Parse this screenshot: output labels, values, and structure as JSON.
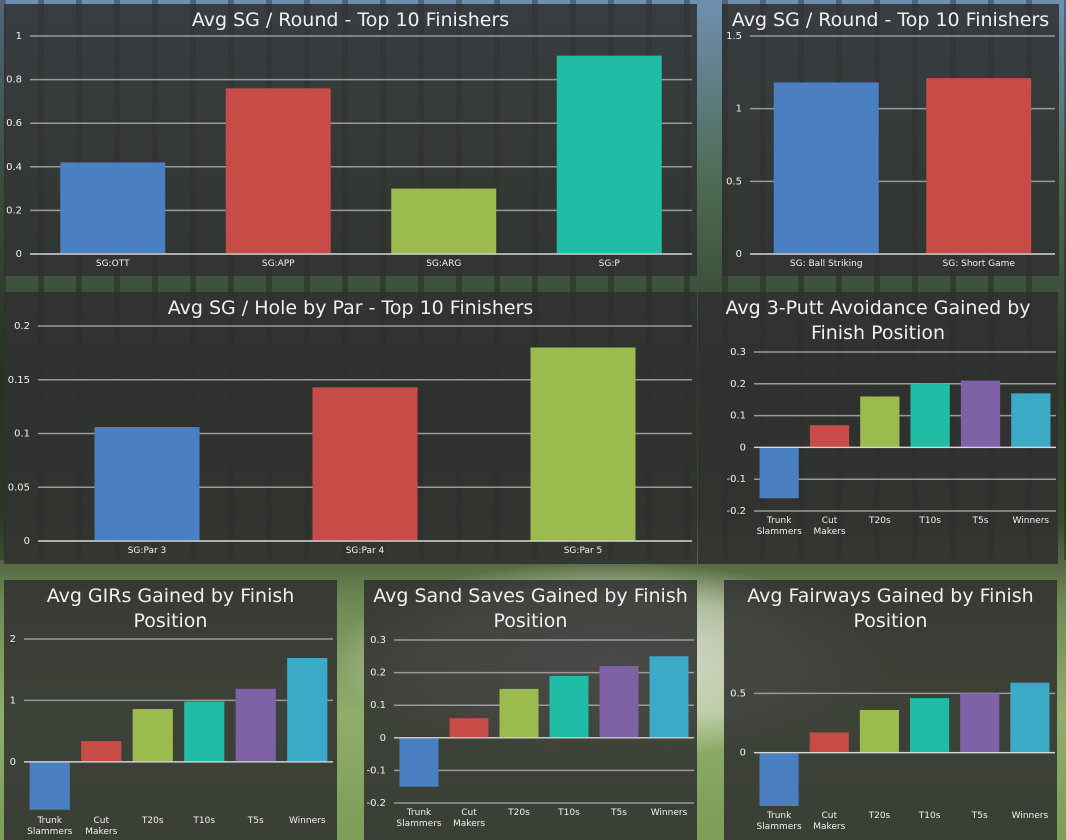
{
  "chart_data": [
    {
      "id": "c1",
      "type": "bar",
      "title": "Avg SG / Round - Top 10 Finishers",
      "categories": [
        "SG:OTT",
        "SG:APP",
        "SG:ARG",
        "SG:P"
      ],
      "values": [
        0.42,
        0.76,
        0.3,
        0.91
      ],
      "colors": [
        "#4a7fc1",
        "#c74b47",
        "#9bbb4f",
        "#20bca6"
      ],
      "ylim": [
        0,
        1
      ],
      "yticks": [
        0,
        0.2,
        0.4,
        0.6,
        0.8,
        1
      ],
      "ytick_labels": [
        "0",
        "0.2",
        "0.4",
        "0.6",
        "0.8",
        "1"
      ],
      "grid": true
    },
    {
      "id": "c2",
      "type": "bar",
      "title": "Avg SG / Round - Top 10 Finishers",
      "categories": [
        "SG: Ball Striking",
        "SG: Short Game"
      ],
      "values": [
        1.18,
        1.21
      ],
      "colors": [
        "#4a7fc1",
        "#c74b47"
      ],
      "ylim": [
        0,
        1.5
      ],
      "yticks": [
        0,
        0.5,
        1,
        1.5
      ],
      "ytick_labels": [
        "0",
        "0.5",
        "1",
        "1.5"
      ],
      "grid": true
    },
    {
      "id": "c3",
      "type": "bar",
      "title": "Avg SG / Hole by Par - Top 10 Finishers",
      "categories": [
        "SG:Par 3",
        "SG:Par 4",
        "SG:Par 5"
      ],
      "values": [
        0.106,
        0.143,
        0.18
      ],
      "colors": [
        "#4a7fc1",
        "#c74b47",
        "#9bbb4f"
      ],
      "ylim": [
        0,
        0.2
      ],
      "yticks": [
        0,
        0.05,
        0.1,
        0.15,
        0.2
      ],
      "ytick_labels": [
        "0",
        "0.05",
        "0.1",
        "0.15",
        "0.2"
      ],
      "grid": true
    },
    {
      "id": "c4",
      "type": "bar",
      "title": "Avg 3-Putt Avoidance Gained by Finish Position",
      "categories": [
        "Trunk Slammers",
        "Cut Makers",
        "T20s",
        "T10s",
        "T5s",
        "Winners"
      ],
      "values": [
        -0.16,
        0.07,
        0.16,
        0.2,
        0.21,
        0.17
      ],
      "colors": [
        "#4a7fc1",
        "#c74b47",
        "#9bbb4f",
        "#20bca6",
        "#7f62a6",
        "#3aaac6"
      ],
      "ylim": [
        -0.2,
        0.3
      ],
      "yticks": [
        -0.2,
        -0.1,
        0,
        0.1,
        0.2,
        0.3
      ],
      "ytick_labels": [
        "-0.2",
        "-0.1",
        "0",
        "0.1",
        "0.2",
        "0.3"
      ],
      "grid": true
    },
    {
      "id": "c5",
      "type": "bar",
      "title": "Avg GIRs Gained by Finish Position",
      "categories": [
        "Trunk Slammers",
        "Cut Makers",
        "T20s",
        "T10s",
        "T5s",
        "Winners"
      ],
      "values": [
        -0.78,
        0.34,
        0.86,
        0.98,
        1.19,
        1.69
      ],
      "colors": [
        "#4a7fc1",
        "#c74b47",
        "#9bbb4f",
        "#20bca6",
        "#7f62a6",
        "#3aaac6"
      ],
      "ylim": [
        -0.8,
        2
      ],
      "yticks": [
        0,
        1,
        2
      ],
      "ytick_labels": [
        "0",
        "1",
        "2"
      ],
      "grid": true
    },
    {
      "id": "c6",
      "type": "bar",
      "title": "Avg Sand Saves Gained by Finish Position",
      "categories": [
        "Trunk Slammers",
        "Cut Makers",
        "T20s",
        "T10s",
        "T5s",
        "Winners"
      ],
      "values": [
        -0.15,
        0.06,
        0.15,
        0.19,
        0.22,
        0.25
      ],
      "colors": [
        "#4a7fc1",
        "#c74b47",
        "#9bbb4f",
        "#20bca6",
        "#7f62a6",
        "#3aaac6"
      ],
      "ylim": [
        -0.2,
        0.3
      ],
      "yticks": [
        -0.2,
        -0.1,
        0,
        0.1,
        0.2,
        0.3
      ],
      "ytick_labels": [
        "-0.2",
        "-0.1",
        "0",
        "0.1",
        "0.2",
        "0.3"
      ],
      "grid": true
    },
    {
      "id": "c7",
      "type": "bar",
      "title": "Avg Fairways Gained by Finish Position",
      "categories": [
        "Trunk Slammers",
        "Cut Makers",
        "T20s",
        "T10s",
        "T5s",
        "Winners"
      ],
      "values": [
        -0.45,
        0.17,
        0.36,
        0.46,
        0.5,
        0.59
      ],
      "colors": [
        "#4a7fc1",
        "#c74b47",
        "#9bbb4f",
        "#20bca6",
        "#7f62a6",
        "#3aaac6"
      ],
      "ylim": [
        -0.45,
        0.95
      ],
      "yticks": [
        0,
        0.5
      ],
      "ytick_labels": [
        "0",
        "0.5"
      ],
      "grid": true
    }
  ]
}
